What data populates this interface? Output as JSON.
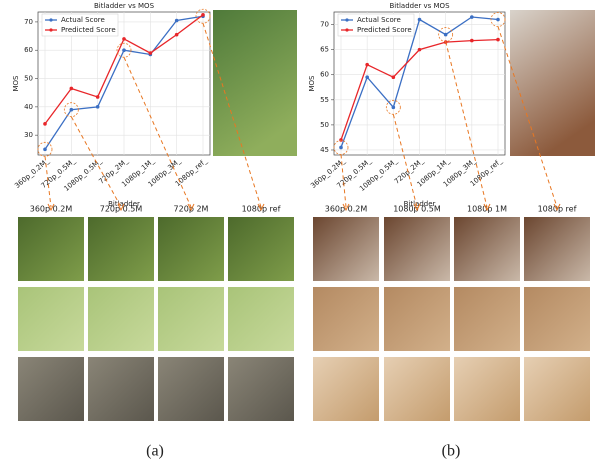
{
  "chart_data": [
    {
      "type": "line",
      "title": "Bitladder vs MOS",
      "xlabel": "Bitladder",
      "ylabel": "MOS",
      "categories": [
        "360p_0.2M_",
        "720p_0.5M_",
        "1080p_0.5M_",
        "720p_2M_",
        "1080p_1M_",
        "1080p_3M_",
        "1080p_ref_"
      ],
      "series": [
        {
          "name": "Actual Score",
          "color": "#3b6fc4",
          "values": [
            25,
            39,
            40,
            60,
            58.5,
            70.5,
            72
          ]
        },
        {
          "name": "Predicted Score",
          "color": "#e8262a",
          "values": [
            34,
            46.5,
            43.5,
            64,
            59,
            65.5,
            72.5
          ]
        }
      ],
      "ylim": [
        23,
        73.5
      ],
      "yticks": [
        30,
        40,
        50,
        60,
        70
      ],
      "grid": true,
      "legend": "upper left"
    },
    {
      "type": "line",
      "title": "Bitladder vs MOS",
      "xlabel": "Bitladder",
      "ylabel": "MOS",
      "categories": [
        "360p_0.2M_",
        "720p_0.5M_",
        "1080p_0.5M_",
        "720p_2M_",
        "1080p_1M_",
        "1080p_3M_",
        "1080p_ref_"
      ],
      "series": [
        {
          "name": "Actual Score",
          "color": "#3b6fc4",
          "values": [
            45.5,
            59.5,
            53.5,
            71,
            68,
            71.5,
            71
          ]
        },
        {
          "name": "Predicted Score",
          "color": "#e8262a",
          "values": [
            47,
            62,
            59.5,
            65,
            66.5,
            66.8,
            67
          ]
        }
      ],
      "ylim": [
        44,
        72.5
      ],
      "yticks": [
        45,
        50,
        55,
        60,
        65,
        70
      ],
      "grid": true,
      "legend": "upper left"
    }
  ],
  "panels": [
    {
      "caption": "(a)",
      "crop_labels": [
        "360p 0.2M",
        "720p 0.5M",
        "720p 2M",
        "1080p ref"
      ]
    },
    {
      "caption": "(b)",
      "crop_labels": [
        "360p 0.2M",
        "1080p 0.5M",
        "1080p 1M",
        "1080p ref"
      ]
    }
  ]
}
